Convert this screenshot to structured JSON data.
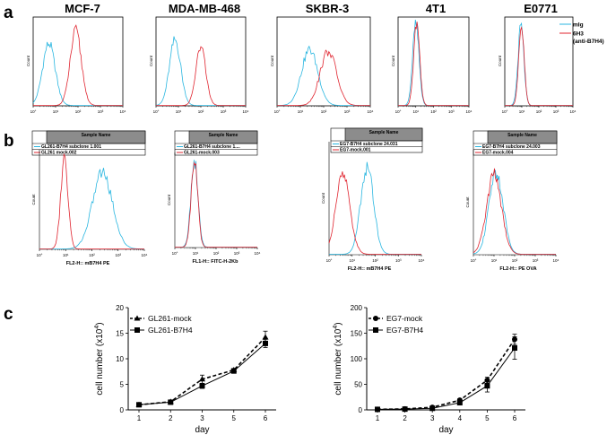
{
  "panels": {
    "a": "a",
    "b": "b",
    "c": "c"
  },
  "colors": {
    "cyan": "#29b6e0",
    "red": "#e0242f",
    "header_gray": "#8c8c8c"
  },
  "chart_data": [
    {
      "panel": "a",
      "type": "histogram-overlay",
      "cells": [
        "MCF-7",
        "MDA-MB-468",
        "SKBR-3",
        "4T1",
        "E0771"
      ],
      "ylabel": "Count",
      "x_ticks": [
        "10°",
        "10¹",
        "10²",
        "10³",
        "10⁴"
      ],
      "legend": [
        "mIg",
        "6H3",
        "(anti-B7H4)"
      ],
      "series": [
        {
          "name": "mIg",
          "peaks": [
            [
              0.7,
              0.72
            ],
            [
              0.85,
              0.76
            ],
            [
              1.4,
              0.65
            ],
            [
              1.0,
              0.95
            ],
            [
              0.95,
              0.92
            ]
          ]
        },
        {
          "name": "6H3",
          "peaks": [
            [
              1.9,
              0.86
            ],
            [
              2.0,
              0.68
            ],
            [
              2.2,
              0.63
            ],
            [
              1.05,
              0.96
            ],
            [
              0.98,
              0.9
            ]
          ]
        }
      ]
    },
    {
      "panel": "b",
      "type": "histogram-overlay",
      "sample_header": "Sample Name",
      "ylabel": "Count",
      "x_ticks": [
        "10°",
        "10¹",
        "10²",
        "10³",
        "10⁴"
      ],
      "cells": [
        {
          "samples": [
            "GL261-B7H4 subclone 1.001",
            "GL261 mock.002"
          ],
          "xlabel": "FL2-H:: mB7H4 PE"
        },
        {
          "samples": [
            "GL261-B7H4 subclone 1....",
            "GL261-mock.003"
          ],
          "xlabel": "FL1-H:: FITC-H-2Kb"
        },
        {
          "samples": [
            "EG7-B7H4 subclone 24.031",
            "EG7-mock.001"
          ],
          "xlabel": "FL2-H:: mB7H4 PE"
        },
        {
          "samples": [
            "EG7-B7H4 subclone 24.003",
            "EG7-mock.004"
          ],
          "xlabel": "FL2-H:: PE OVA"
        }
      ]
    },
    {
      "panel": "c",
      "type": "line",
      "title": "",
      "xlabel": "day",
      "ylabel": "cell number (x10",
      "ylabel_sup": "4",
      "ylabel_end": ")",
      "x": [
        1,
        2,
        3,
        5,
        6
      ],
      "x_ticks": [
        "1",
        "2",
        "3",
        "5",
        "6"
      ],
      "ylim": [
        0,
        20
      ],
      "y_ticks": [
        "0",
        "5",
        "10",
        "15",
        "20"
      ],
      "series": [
        {
          "name": "GL261-mock",
          "marker": "triangle",
          "dashed": true,
          "values": [
            1.0,
            1.6,
            6.0,
            7.8,
            14.2
          ],
          "errors": [
            0.2,
            0.2,
            0.8,
            0.3,
            1.2
          ]
        },
        {
          "name": "GL261-B7H4",
          "marker": "square",
          "dashed": false,
          "values": [
            1.0,
            1.5,
            4.7,
            7.6,
            13.0
          ],
          "errors": [
            0.2,
            0.2,
            0.5,
            0.3,
            0.8
          ]
        }
      ]
    },
    {
      "panel": "c",
      "type": "line",
      "title": "",
      "xlabel": "day",
      "ylabel": "cell number (x10",
      "ylabel_sup": "4",
      "ylabel_end": ")",
      "x": [
        1,
        2,
        3,
        4,
        5,
        6
      ],
      "x_ticks": [
        "1",
        "2",
        "3",
        "4",
        "5",
        "6"
      ],
      "ylim": [
        0,
        200
      ],
      "y_ticks": [
        "0",
        "50",
        "100",
        "150",
        "200"
      ],
      "series": [
        {
          "name": "EG7-mock",
          "marker": "circle",
          "dashed": true,
          "values": [
            1,
            2,
            5,
            19,
            58,
            138
          ],
          "errors": [
            0.5,
            0.5,
            1,
            3,
            6,
            10
          ]
        },
        {
          "name": "EG7-B7H4",
          "marker": "square",
          "dashed": false,
          "values": [
            1,
            1.5,
            3,
            14,
            47,
            121
          ],
          "errors": [
            0.5,
            0.5,
            1,
            3,
            12,
            22
          ]
        }
      ]
    }
  ]
}
